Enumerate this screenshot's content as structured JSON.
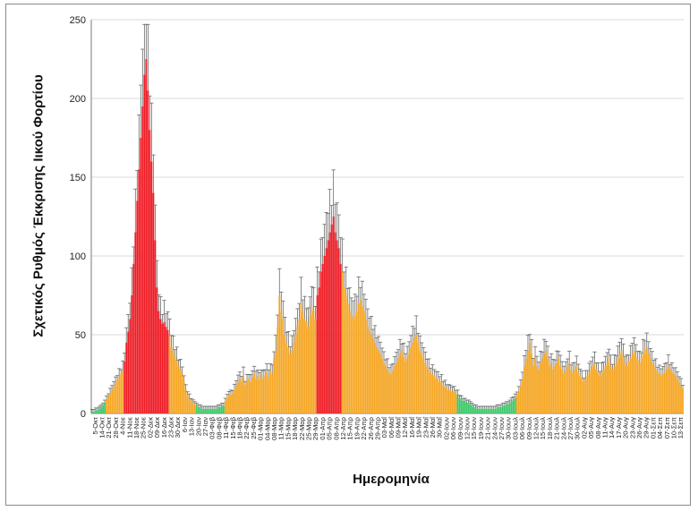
{
  "chart_data": {
    "type": "bar",
    "ylabel": "Σχετικός Ρυθμός Έκκρισης Ιικού Φορτίου",
    "xlabel": "Ημερομηνία",
    "ylim": [
      0,
      250
    ],
    "yticks": [
      0,
      50,
      100,
      150,
      200,
      250
    ],
    "grid": "horizontal",
    "error_bars": true,
    "colors": {
      "red": "#ee1c25",
      "orange": "#f5a623",
      "green": "#3ec86a",
      "error": "#6b6b6b",
      "grid": "#d9d9d9"
    },
    "segments": [
      {
        "color": "green",
        "values": [
          1,
          1,
          2,
          2,
          3,
          4,
          5,
          7
        ]
      },
      {
        "color": "orange",
        "values": [
          9,
          11,
          13,
          15,
          17,
          19,
          21,
          23,
          25,
          27
        ]
      },
      {
        "color": "red",
        "values": [
          33,
          45,
          52,
          60,
          75,
          95,
          115,
          135,
          155,
          175,
          195,
          215,
          225,
          205,
          180,
          160,
          140,
          110,
          80,
          65,
          60,
          57,
          58,
          55,
          53
        ]
      },
      {
        "color": "orange",
        "values": [
          50,
          42,
          40,
          36,
          34,
          30,
          28,
          25,
          20,
          15,
          12,
          10,
          8,
          7,
          6
        ]
      },
      {
        "color": "green",
        "values": [
          5,
          4,
          4,
          3,
          3,
          3,
          3,
          3,
          3,
          3,
          3,
          3,
          4,
          4,
          5,
          5
        ]
      },
      {
        "color": "orange",
        "values": [
          8,
          10,
          12,
          12,
          13,
          15,
          18,
          20,
          22,
          20,
          24,
          18,
          20,
          22,
          20,
          23,
          25,
          22,
          24,
          21,
          25,
          22,
          24,
          26,
          23,
          27,
          25,
          35,
          40,
          55,
          75,
          65,
          60,
          50,
          45,
          42,
          38,
          40,
          45,
          50,
          55,
          60,
          70,
          65,
          60,
          58,
          55,
          62,
          68,
          65,
          60
        ]
      },
      {
        "color": "red",
        "values": [
          75,
          80,
          90,
          95,
          100,
          105,
          110,
          115,
          120,
          125,
          115,
          110,
          105,
          95
        ]
      },
      {
        "color": "orange",
        "values": [
          90,
          80,
          75,
          70,
          65,
          62,
          60,
          62,
          65,
          70,
          72,
          68,
          65,
          60,
          55,
          52,
          50,
          48,
          45,
          42,
          40,
          38,
          35,
          32,
          30,
          28,
          26,
          25,
          27,
          30,
          32,
          35,
          38,
          40,
          36,
          33,
          35,
          38,
          42,
          45,
          48,
          50,
          45,
          40,
          38,
          35,
          32,
          30,
          28,
          26,
          25,
          24,
          22,
          22,
          20,
          20,
          18,
          17,
          16,
          15,
          15,
          14,
          14,
          13
        ]
      },
      {
        "color": "green",
        "values": [
          12,
          10,
          9,
          8,
          8,
          7,
          7,
          6,
          5,
          4,
          4,
          3,
          3,
          3,
          3,
          3,
          3,
          3,
          3,
          3,
          3,
          3,
          4,
          4,
          4,
          5,
          5,
          6,
          6,
          7,
          8,
          9,
          10
        ]
      },
      {
        "color": "orange",
        "values": [
          12,
          14,
          18,
          22,
          30,
          35,
          40,
          45,
          38,
          30,
          35,
          30,
          28,
          32,
          35,
          38,
          40,
          35,
          30,
          32,
          28,
          30,
          32,
          35,
          30,
          28,
          25,
          27,
          30,
          32,
          28,
          26,
          28,
          30,
          26,
          24,
          22,
          20,
          22,
          24,
          26,
          28,
          30,
          32,
          28,
          26,
          24,
          26,
          28,
          30,
          32,
          35,
          30,
          28,
          30,
          32,
          35,
          38,
          40,
          36,
          32,
          30,
          33,
          35,
          38,
          40,
          36,
          34,
          32,
          35,
          38,
          40,
          42,
          38,
          35,
          32,
          30,
          28,
          26,
          25,
          24,
          25,
          26,
          28,
          30,
          28,
          26,
          25,
          24,
          22,
          20,
          18,
          16
        ]
      }
    ],
    "tick_labels": [
      "5-Οκτ",
      "14-Οκτ",
      "21-Οκτ",
      "28-Οκτ",
      "4-Νοε",
      "11-Νοε",
      "18-Νοε",
      "25-Νοε",
      "02-Δεκ",
      "09-Δεκ",
      "16-Δεκ",
      "23-Δεκ",
      "30-Δεκ",
      "6-Ιαν",
      "13-Ιαν",
      "20-Ιαν",
      "27-Ιαν",
      "03-Φεβ",
      "08-Φεβ",
      "11-Φεβ",
      "15-Φεβ",
      "18-Φεβ",
      "22-Φεβ",
      "25-Φεβ",
      "01-Μαρ",
      "04-Μαρ",
      "08-Μαρ",
      "11-Μαρ",
      "15-Μαρ",
      "18-Μαρ",
      "22-Μαρ",
      "25-Μαρ",
      "29-Μαρ",
      "01-Απρ",
      "05-Απρ",
      "08-Απρ",
      "12-Απρ",
      "15-Απρ",
      "19-Απρ",
      "22-Απρ",
      "26-Απρ",
      "29-Απρ",
      "03-Μαΐ",
      "06-Μαΐ",
      "09-Μαΐ",
      "12-Μαΐ",
      "16-Μαΐ",
      "19-Μαΐ",
      "23-Μαΐ",
      "26-Μαΐ",
      "30-Μαΐ",
      "02-Ιουν",
      "06-Ιουν",
      "09-Ιουν",
      "12-Ιουν",
      "15-Ιουν",
      "19-Ιουν",
      "21-Ιουν",
      "24-Ιουν",
      "27-Ιουν",
      "30-Ιουν",
      "03-Ιουλ",
      "06-Ιουλ",
      "09-Ιουλ",
      "12-Ιουλ",
      "15-Ιουλ",
      "18-Ιουλ",
      "21-Ιουλ",
      "24-Ιουλ",
      "27-Ιουλ",
      "30-Ιουλ",
      "02-Αυγ",
      "05-Αυγ",
      "08-Αυγ",
      "11-Αυγ",
      "14-Αυγ",
      "17-Αυγ",
      "20-Αυγ",
      "23-Αυγ",
      "26-Αυγ",
      "29-Αυγ",
      "01-Σεπ",
      "04-Σεπ",
      "07-Σεπ",
      "10-Σεπ",
      "13-Σεπ"
    ]
  }
}
